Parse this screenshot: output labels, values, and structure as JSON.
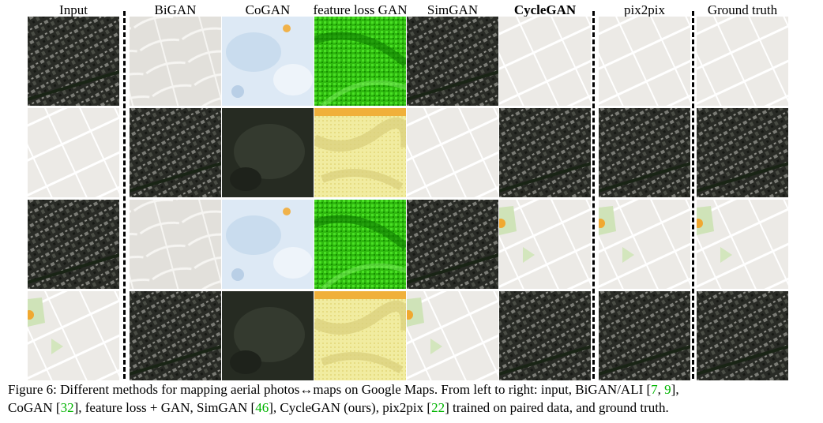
{
  "headers": {
    "input": "Input",
    "bigan": "BiGAN",
    "cogan": "CoGAN",
    "featureloss": "feature loss GAN",
    "simgan": "SimGAN",
    "cyclegan": "CycleGAN",
    "pix2pix": "pix2pix",
    "groundtruth": "Ground truth"
  },
  "caption": {
    "prefix": "Figure 6: Different methods for mapping aerial photos",
    "arrow": "↔",
    "p1": "maps on Google Maps. From left to right: input, BiGAN/ALI [",
    "c1": "7",
    "comma1": ", ",
    "c2": "9",
    "p2": "],",
    "p3": "CoGAN [",
    "c3": "32",
    "p4": "], feature loss + GAN, SimGAN [",
    "c4": "46",
    "p5": "], CycleGAN (ours), pix2pix [",
    "c5": "22",
    "p6": "] trained on paired data, and ground truth."
  },
  "colors": {
    "citation": "#00b400",
    "aerial": "#2f322c",
    "map": "#eceae6",
    "green": "#2fb80f",
    "yellow": "#f1eca0"
  },
  "grid": {
    "rows": [
      [
        "aerial",
        "map-bigan",
        "cogan-light",
        "green",
        "aerial",
        "map",
        "map",
        "map"
      ],
      [
        "map",
        "aerial",
        "cogan-dark",
        "yellow",
        "map",
        "aerial",
        "aerial",
        "aerial"
      ],
      [
        "aerial",
        "map-bigan",
        "cogan-light",
        "green",
        "aerial",
        "map-park",
        "map-park",
        "map-park"
      ],
      [
        "map-park",
        "aerial",
        "cogan-dark",
        "yellow",
        "map-park",
        "aerial",
        "aerial",
        "aerial"
      ]
    ]
  }
}
